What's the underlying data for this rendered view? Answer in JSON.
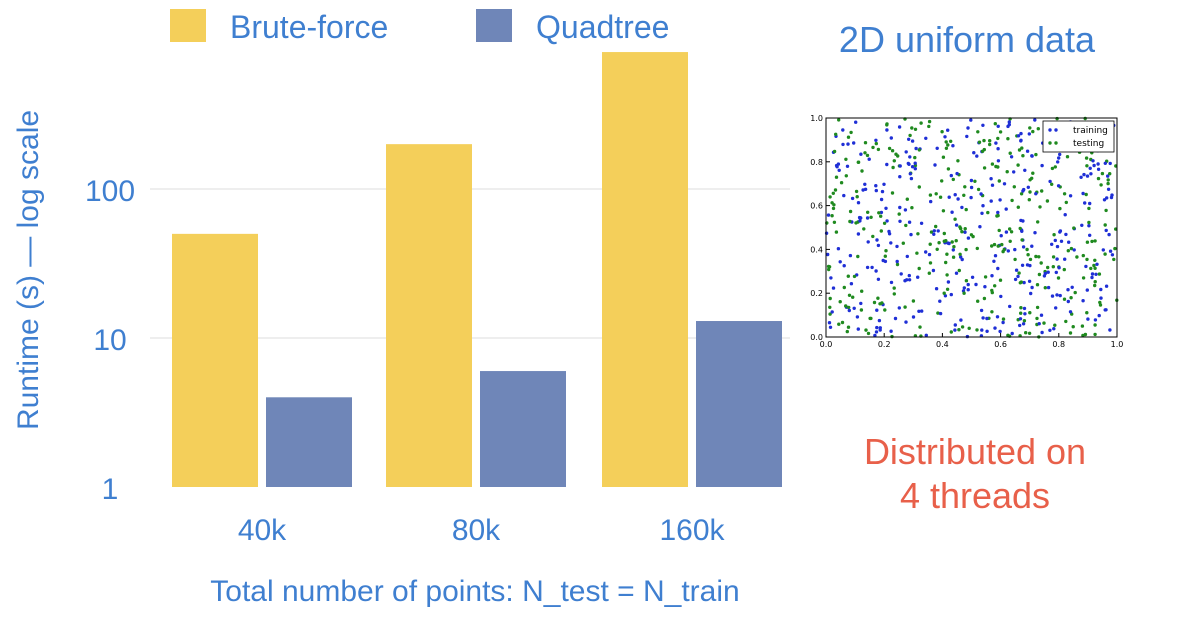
{
  "chart_data": [
    {
      "type": "bar",
      "categories": [
        "40k",
        "80k",
        "160k"
      ],
      "series": [
        {
          "name": "Brute-force",
          "color": "#f4cf5a",
          "values": [
            50,
            200,
            830
          ]
        },
        {
          "name": "Quadtree",
          "color": "#6f86b8",
          "values": [
            4,
            6,
            13
          ]
        }
      ],
      "xlabel": "Total number of points: N_test = N_train",
      "ylabel": "Runtime (s) — log scale",
      "yscale": "log",
      "ylim": [
        1,
        1000
      ],
      "yticks": [
        1,
        10,
        100
      ],
      "ytick_labels": [
        "1",
        "10",
        "100"
      ],
      "grid": true,
      "legend": "top"
    },
    {
      "type": "scatter",
      "title": "2D uniform data",
      "series": [
        {
          "name": "training",
          "color": "#1f2fd6"
        },
        {
          "name": "testing",
          "color": "#1f8a1f"
        }
      ],
      "xlim": [
        0.0,
        1.0
      ],
      "ylim": [
        0.0,
        1.0
      ],
      "xticks": [
        "0.0",
        "0.2",
        "0.4",
        "0.6",
        "0.8",
        "1.0"
      ],
      "yticks": [
        "0.0",
        "0.2",
        "0.4",
        "0.6",
        "0.8",
        "1.0"
      ],
      "legend": "top-right",
      "distribution": "uniform"
    }
  ],
  "annotation": {
    "line1": "Distributed on",
    "line2": "4 threads",
    "color": "#e8604a"
  },
  "text_color": "#3f7fd0"
}
